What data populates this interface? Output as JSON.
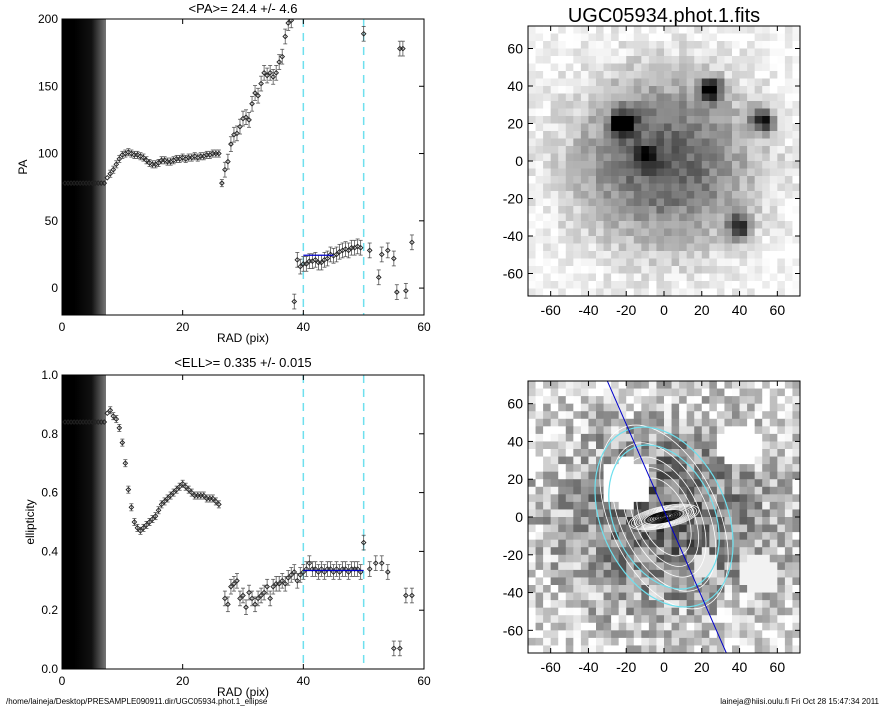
{
  "chart_data": [
    {
      "type": "scatter",
      "title": "<PA>=  24.4 +/-   4.6",
      "xlabel": "RAD (pix)",
      "ylabel": "PA",
      "xlim": [
        0,
        60
      ],
      "ylim": [
        -20,
        200
      ],
      "xticks": [
        0,
        20,
        40,
        60
      ],
      "yticks": [
        0,
        50,
        100,
        150,
        200
      ],
      "mean_line": {
        "x": [
          40,
          45
        ],
        "y": 24.4,
        "color": "#0000cc"
      },
      "vlines": {
        "x": [
          40,
          50
        ],
        "color": "#6ee0ee"
      },
      "series": [
        {
          "x": [
            0.5,
            1.0,
            1.5,
            2.0,
            2.5,
            3.0,
            3.5,
            4.0,
            4.5,
            5.0,
            5.5,
            6.0,
            6.5,
            7.0
          ],
          "y": [
            78,
            78,
            78,
            78,
            78,
            78,
            78,
            78,
            78,
            78,
            78,
            78,
            78,
            78
          ]
        },
        {
          "x": [
            7.5,
            8.0,
            8.5,
            9.0,
            9.5,
            10.0,
            10.5,
            11.0,
            11.5,
            12.0,
            12.5,
            13.0,
            13.5,
            14.0,
            14.5,
            15.0,
            15.5,
            16.0,
            16.5,
            17.0,
            17.5,
            18.0,
            18.5,
            19.0,
            19.5,
            20.0,
            20.5,
            21.0,
            21.5,
            22.0,
            22.5,
            23.0,
            23.5,
            24.0,
            24.5,
            25.0,
            25.5,
            26.0
          ],
          "y": [
            82,
            85,
            88,
            92,
            96,
            99,
            100,
            101,
            100,
            99,
            99,
            98,
            97,
            95,
            93,
            92,
            92,
            93,
            95,
            95,
            94,
            94,
            95,
            96,
            96,
            97,
            96,
            97,
            97,
            98,
            97,
            98,
            98,
            99,
            99,
            100,
            100,
            100
          ]
        },
        {
          "x": [
            26.5,
            27.0,
            27.5,
            28.0,
            28.5,
            29.0,
            29.5,
            30.0,
            30.5,
            31.0,
            31.5,
            32.0,
            32.5,
            33.0,
            33.5,
            34.0,
            34.5,
            35.0,
            35.5,
            36.0,
            36.5,
            37.0,
            37.5,
            38.0
          ],
          "y": [
            78,
            88,
            94,
            107,
            114,
            115,
            120,
            126,
            127,
            125,
            137,
            145,
            143,
            152,
            160,
            158,
            160,
            157,
            160,
            168,
            172,
            187,
            197,
            199
          ]
        },
        {
          "x": [
            38.5,
            39.0,
            39.5,
            40.0,
            40.5,
            41.0,
            41.5,
            42.0,
            42.5,
            43.0,
            43.5,
            44.0,
            44.5,
            45.0,
            45.5,
            46.0,
            46.5,
            47.0,
            47.5,
            48.0,
            48.5,
            49.0,
            49.5,
            50.0,
            51.0,
            52.5,
            53.0,
            54.0,
            55.0,
            55.5,
            56.0,
            56.5,
            57.0,
            58.0
          ],
          "y": [
            -10,
            21,
            16,
            18,
            18,
            20,
            20,
            21,
            19,
            19,
            21,
            22,
            25,
            24,
            25,
            27,
            28,
            29,
            28,
            30,
            30,
            31,
            30,
            189,
            28,
            8,
            25,
            28,
            22,
            -3,
            178,
            178,
            -2,
            34
          ]
        }
      ]
    },
    {
      "type": "scatter",
      "title": "<ELL>= 0.335 +/-  0.015",
      "xlabel": "RAD (pix)",
      "ylabel": "ellipticity",
      "xlim": [
        0,
        60
      ],
      "ylim": [
        0.0,
        1.0
      ],
      "xticks": [
        0,
        20,
        40,
        60
      ],
      "yticks": [
        0.0,
        0.2,
        0.4,
        0.6,
        0.8,
        1.0
      ],
      "mean_line": {
        "x": [
          40,
          50
        ],
        "y": 0.335,
        "color": "#0000cc"
      },
      "vlines": {
        "x": [
          40,
          50
        ],
        "color": "#6ee0ee"
      },
      "series": [
        {
          "x": [
            0.5,
            1.0,
            1.5,
            2.0,
            2.5,
            3.0,
            3.5,
            4.0,
            4.5,
            5.0,
            5.5,
            6.0,
            6.5,
            7.0
          ],
          "y": [
            0.84,
            0.84,
            0.84,
            0.84,
            0.84,
            0.84,
            0.84,
            0.84,
            0.84,
            0.84,
            0.84,
            0.84,
            0.84,
            0.84
          ]
        },
        {
          "x": [
            7.5,
            8.0,
            8.5,
            9.0,
            9.5,
            10.0,
            10.5,
            11.0,
            11.5,
            12.0,
            12.5,
            13.0,
            13.5,
            14.0,
            14.5,
            15.0,
            15.5,
            16.0,
            16.5,
            17.0,
            17.5,
            18.0,
            18.5,
            19.0,
            19.5,
            20.0,
            20.5,
            21.0,
            21.5,
            22.0,
            22.5,
            23.0,
            23.5,
            24.0,
            24.5,
            25.0,
            25.5,
            26.0
          ],
          "y": [
            0.87,
            0.88,
            0.86,
            0.85,
            0.82,
            0.77,
            0.7,
            0.61,
            0.55,
            0.5,
            0.48,
            0.47,
            0.48,
            0.49,
            0.5,
            0.51,
            0.52,
            0.54,
            0.56,
            0.57,
            0.58,
            0.59,
            0.6,
            0.61,
            0.62,
            0.63,
            0.62,
            0.61,
            0.6,
            0.59,
            0.59,
            0.59,
            0.59,
            0.58,
            0.58,
            0.58,
            0.57,
            0.56
          ]
        },
        {
          "x": [
            27.0,
            27.5,
            28.0,
            28.5,
            29.0,
            29.5,
            30.0,
            30.5,
            31.0,
            31.5,
            32.0,
            32.5,
            33.0,
            33.5,
            34.0,
            34.5,
            35.0,
            35.5,
            36.0,
            36.5,
            37.0,
            37.5,
            38.0,
            38.5,
            39.0,
            39.5,
            40.0,
            40.5,
            41.0,
            41.5,
            42.0,
            42.5,
            43.0,
            43.5,
            44.0,
            44.5,
            45.0,
            45.5,
            46.0,
            46.5,
            47.0,
            47.5,
            48.0,
            48.5,
            49.0,
            49.5,
            50.0,
            51.0,
            52.0,
            53.0,
            54.0,
            55.0,
            56.0,
            57.0,
            58.0
          ],
          "y": [
            0.24,
            0.22,
            0.28,
            0.29,
            0.3,
            0.24,
            0.25,
            0.21,
            0.26,
            0.24,
            0.22,
            0.24,
            0.25,
            0.26,
            0.28,
            0.24,
            0.28,
            0.29,
            0.29,
            0.3,
            0.29,
            0.31,
            0.32,
            0.33,
            0.3,
            0.32,
            0.33,
            0.34,
            0.36,
            0.34,
            0.34,
            0.33,
            0.34,
            0.33,
            0.34,
            0.34,
            0.33,
            0.34,
            0.33,
            0.34,
            0.34,
            0.33,
            0.34,
            0.34,
            0.34,
            0.33,
            0.43,
            0.34,
            0.36,
            0.36,
            0.33,
            0.07,
            0.07,
            0.25,
            0.25
          ]
        }
      ]
    },
    {
      "type": "heatmap",
      "title": "UGC05934.phot.1.fits",
      "xlim": [
        -72,
        72
      ],
      "ylim": [
        -72,
        72
      ],
      "xticks": [
        -60,
        -40,
        -20,
        0,
        20,
        40,
        60
      ],
      "yticks": [
        -60,
        -40,
        -20,
        0,
        20,
        40,
        60
      ]
    },
    {
      "type": "heatmap",
      "title": "",
      "xlim": [
        -72,
        72
      ],
      "ylim": [
        -72,
        72
      ],
      "xticks": [
        -60,
        -40,
        -20,
        0,
        20,
        40,
        60
      ],
      "yticks": [
        -60,
        -40,
        -20,
        0,
        20,
        40,
        60
      ],
      "overlay": {
        "isophote_color": "#ffffff",
        "highlight_color": "#6ee0ee",
        "pa_line_color": "#0000cc"
      }
    }
  ],
  "footer": {
    "left": "/home/laineja/Desktop/PRESAMPLE090911.dir/UGC05934.phot.1_ellipse",
    "right": "laineja@hiisi.oulu.fi  Fri Oct 28 15:47:34 2011"
  }
}
